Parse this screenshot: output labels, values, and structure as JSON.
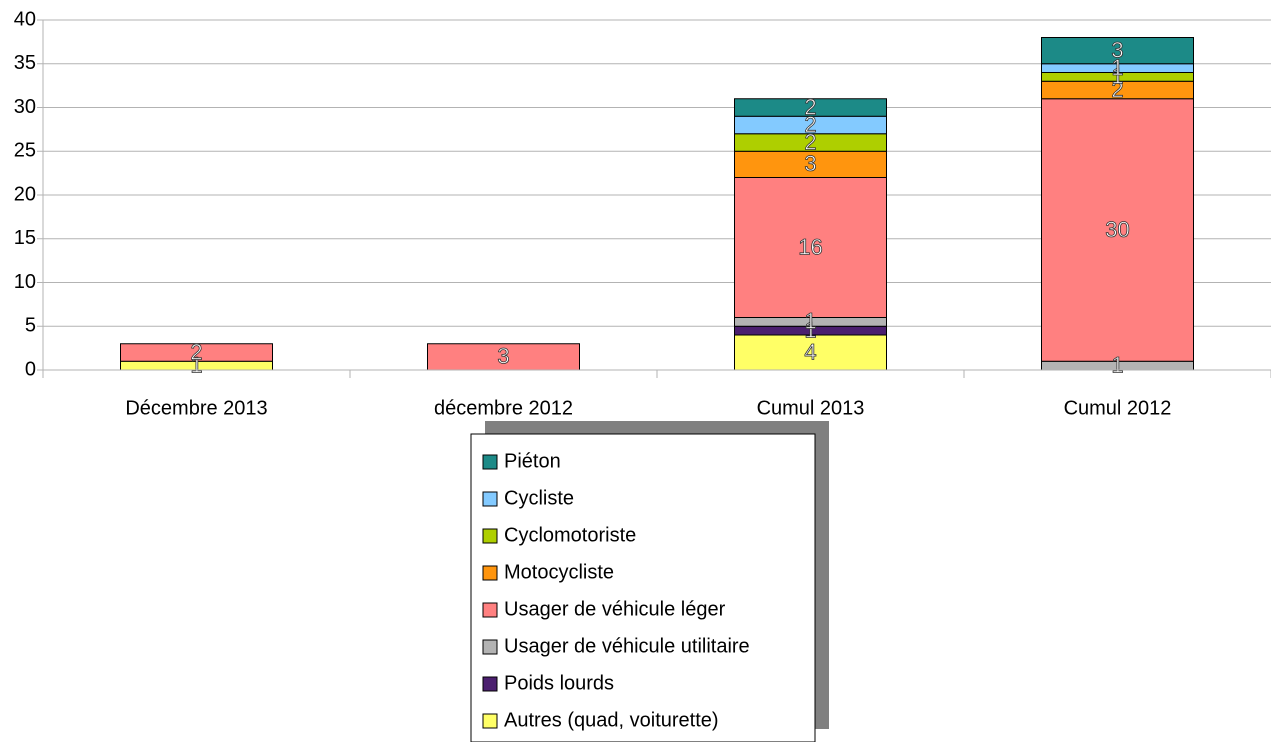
{
  "chart_data": {
    "type": "bar",
    "stacked": true,
    "categories": [
      "Décembre 2013",
      "décembre 2012",
      "Cumul 2013",
      "Cumul 2012"
    ],
    "series": [
      {
        "name": "Autres (quad, voiturette)",
        "color": "#ffff66",
        "values": [
          1,
          0,
          4,
          0
        ]
      },
      {
        "name": "Poids lourds",
        "color": "#4b1f6f",
        "values": [
          0,
          0,
          1,
          0
        ]
      },
      {
        "name": "Usager de véhicule utilitaire",
        "color": "#b3b3b3",
        "values": [
          0,
          0,
          1,
          1
        ]
      },
      {
        "name": "Usager de véhicule léger",
        "color": "#ff8080",
        "values": [
          2,
          3,
          16,
          30
        ]
      },
      {
        "name": "Motocycliste",
        "color": "#ff950e",
        "values": [
          0,
          0,
          3,
          2
        ]
      },
      {
        "name": "Cyclomotoriste",
        "color": "#aecf00",
        "values": [
          0,
          0,
          2,
          1
        ]
      },
      {
        "name": "Cycliste",
        "color": "#83caff",
        "values": [
          0,
          0,
          2,
          1
        ]
      },
      {
        "name": "Piéton",
        "color": "#1c8a87",
        "values": [
          0,
          0,
          2,
          3
        ]
      }
    ],
    "ylim": [
      0,
      40
    ],
    "yticks": [
      0,
      5,
      10,
      15,
      20,
      25,
      30,
      35,
      40
    ],
    "grid": true,
    "legend": "bottom"
  }
}
